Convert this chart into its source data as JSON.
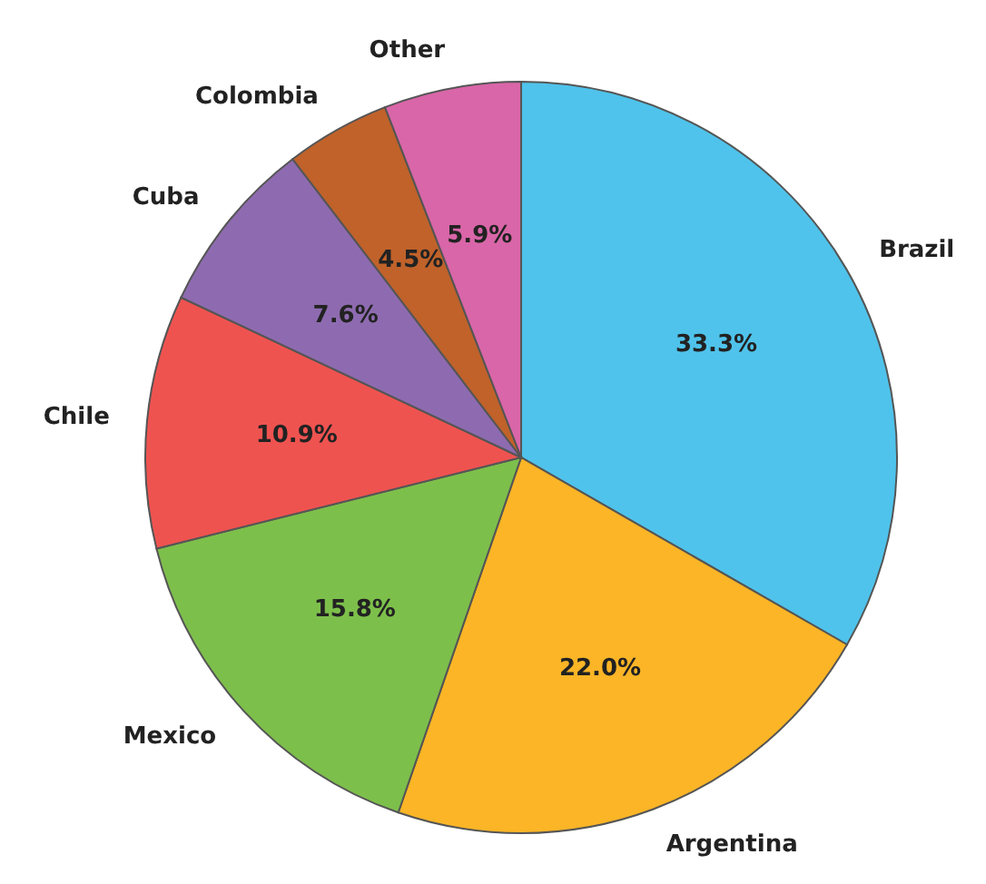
{
  "chart_data": {
    "type": "pie",
    "categories": [
      "Brazil",
      "Argentina",
      "Mexico",
      "Chile",
      "Cuba",
      "Colombia",
      "Other"
    ],
    "values": [
      33.3,
      22.0,
      15.8,
      10.9,
      7.6,
      4.5,
      5.9
    ],
    "value_labels": [
      "33.3%",
      "22.0%",
      "15.8%",
      "10.9%",
      "7.6%",
      "4.5%",
      "5.9%"
    ],
    "colors": [
      "#4fc3eb",
      "#fbb526",
      "#7dbf4b",
      "#ef5350",
      "#8e6bb0",
      "#c0622a",
      "#d966a8"
    ]
  }
}
